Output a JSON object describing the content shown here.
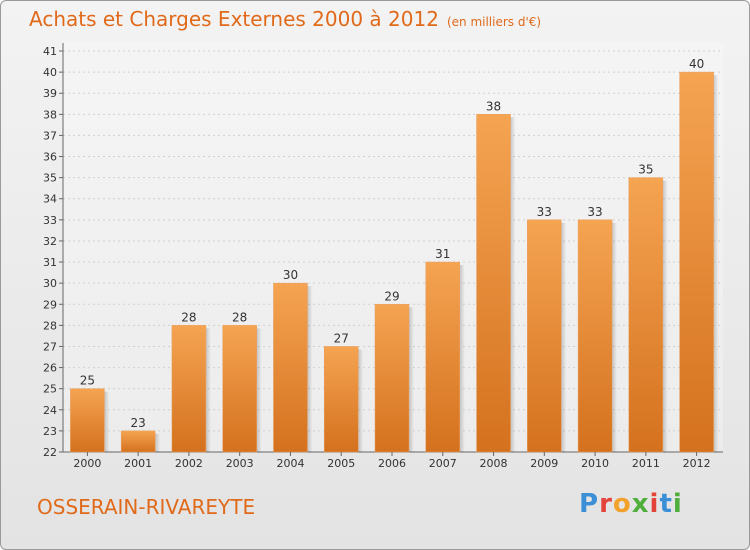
{
  "header": {
    "title": "Achats et Charges Externes 2000 à 2012",
    "subtitle": "(en milliers d'€)"
  },
  "footer": {
    "commune": "OSSERAIN-RIVAREYTE",
    "logo": "Proxiti"
  },
  "colors": {
    "accent": "#e06a1a",
    "bar_top": "#f5a452",
    "bar_bottom": "#d4711e",
    "logo_letters": [
      "#3a8fd6",
      "#e2443a",
      "#f2a12a",
      "#4fae3c",
      "#e2443a",
      "#3a8fd6",
      "#4fae3c"
    ]
  },
  "chart_data": {
    "type": "bar",
    "title": "Achats et Charges Externes 2000 à 2012",
    "subtitle": "(en milliers d'€)",
    "categories": [
      "2000",
      "2001",
      "2002",
      "2003",
      "2004",
      "2005",
      "2006",
      "2007",
      "2008",
      "2009",
      "2010",
      "2011",
      "2012"
    ],
    "values": [
      25,
      23,
      28,
      28,
      30,
      27,
      29,
      31,
      38,
      33,
      33,
      35,
      40
    ],
    "ylim": [
      22,
      41
    ],
    "yticks": [
      22,
      23,
      24,
      25,
      26,
      27,
      28,
      29,
      30,
      31,
      32,
      33,
      34,
      35,
      36,
      37,
      38,
      39,
      40,
      41
    ],
    "xlabel": "",
    "ylabel": "",
    "grid": true,
    "legend": "none"
  }
}
